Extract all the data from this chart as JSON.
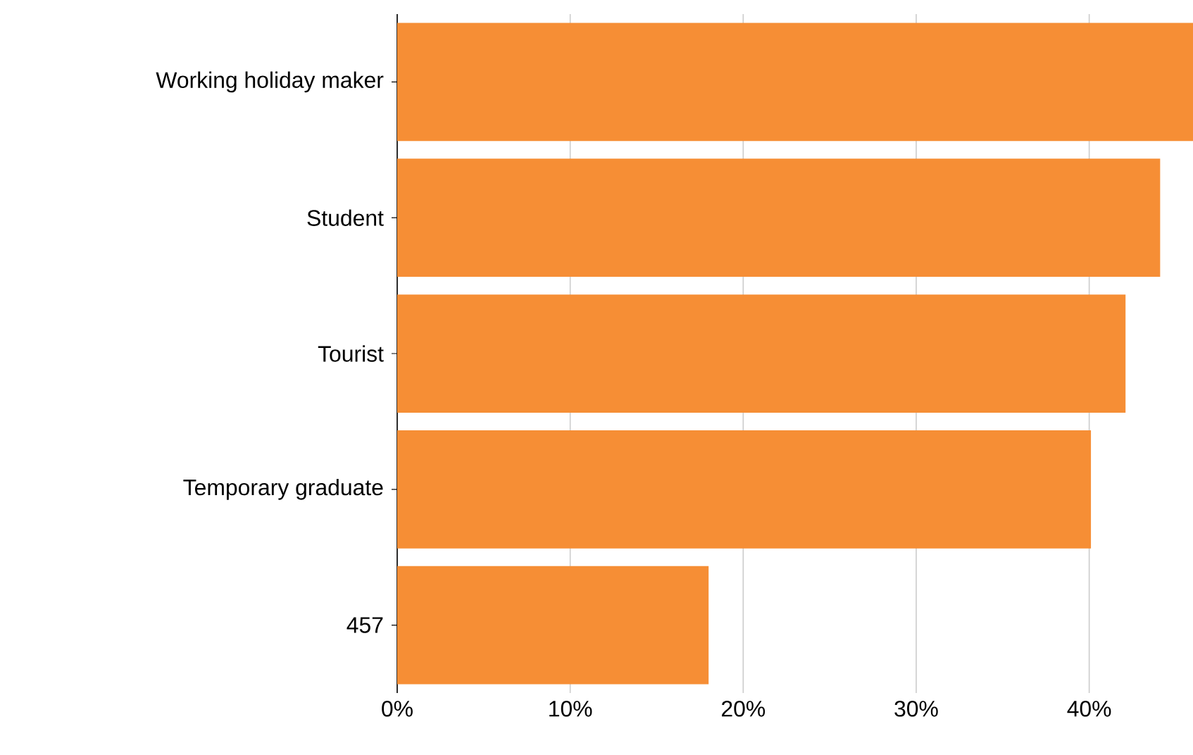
{
  "chart_data": {
    "type": "bar",
    "orientation": "horizontal",
    "categories": [
      "Working holiday maker",
      "Student",
      "Tourist",
      "Temporary graduate",
      "457"
    ],
    "values": [
      46,
      44.1,
      42.1,
      40.1,
      18.0
    ],
    "color": "#f68e35",
    "xlim": [
      0,
      46
    ],
    "xticks": [
      {
        "value": 0,
        "label": "0%"
      },
      {
        "value": 10,
        "label": "10%"
      },
      {
        "value": 20,
        "label": "20%"
      },
      {
        "value": 30,
        "label": "30%"
      },
      {
        "value": 40,
        "label": "40%"
      }
    ],
    "grid": "x"
  }
}
